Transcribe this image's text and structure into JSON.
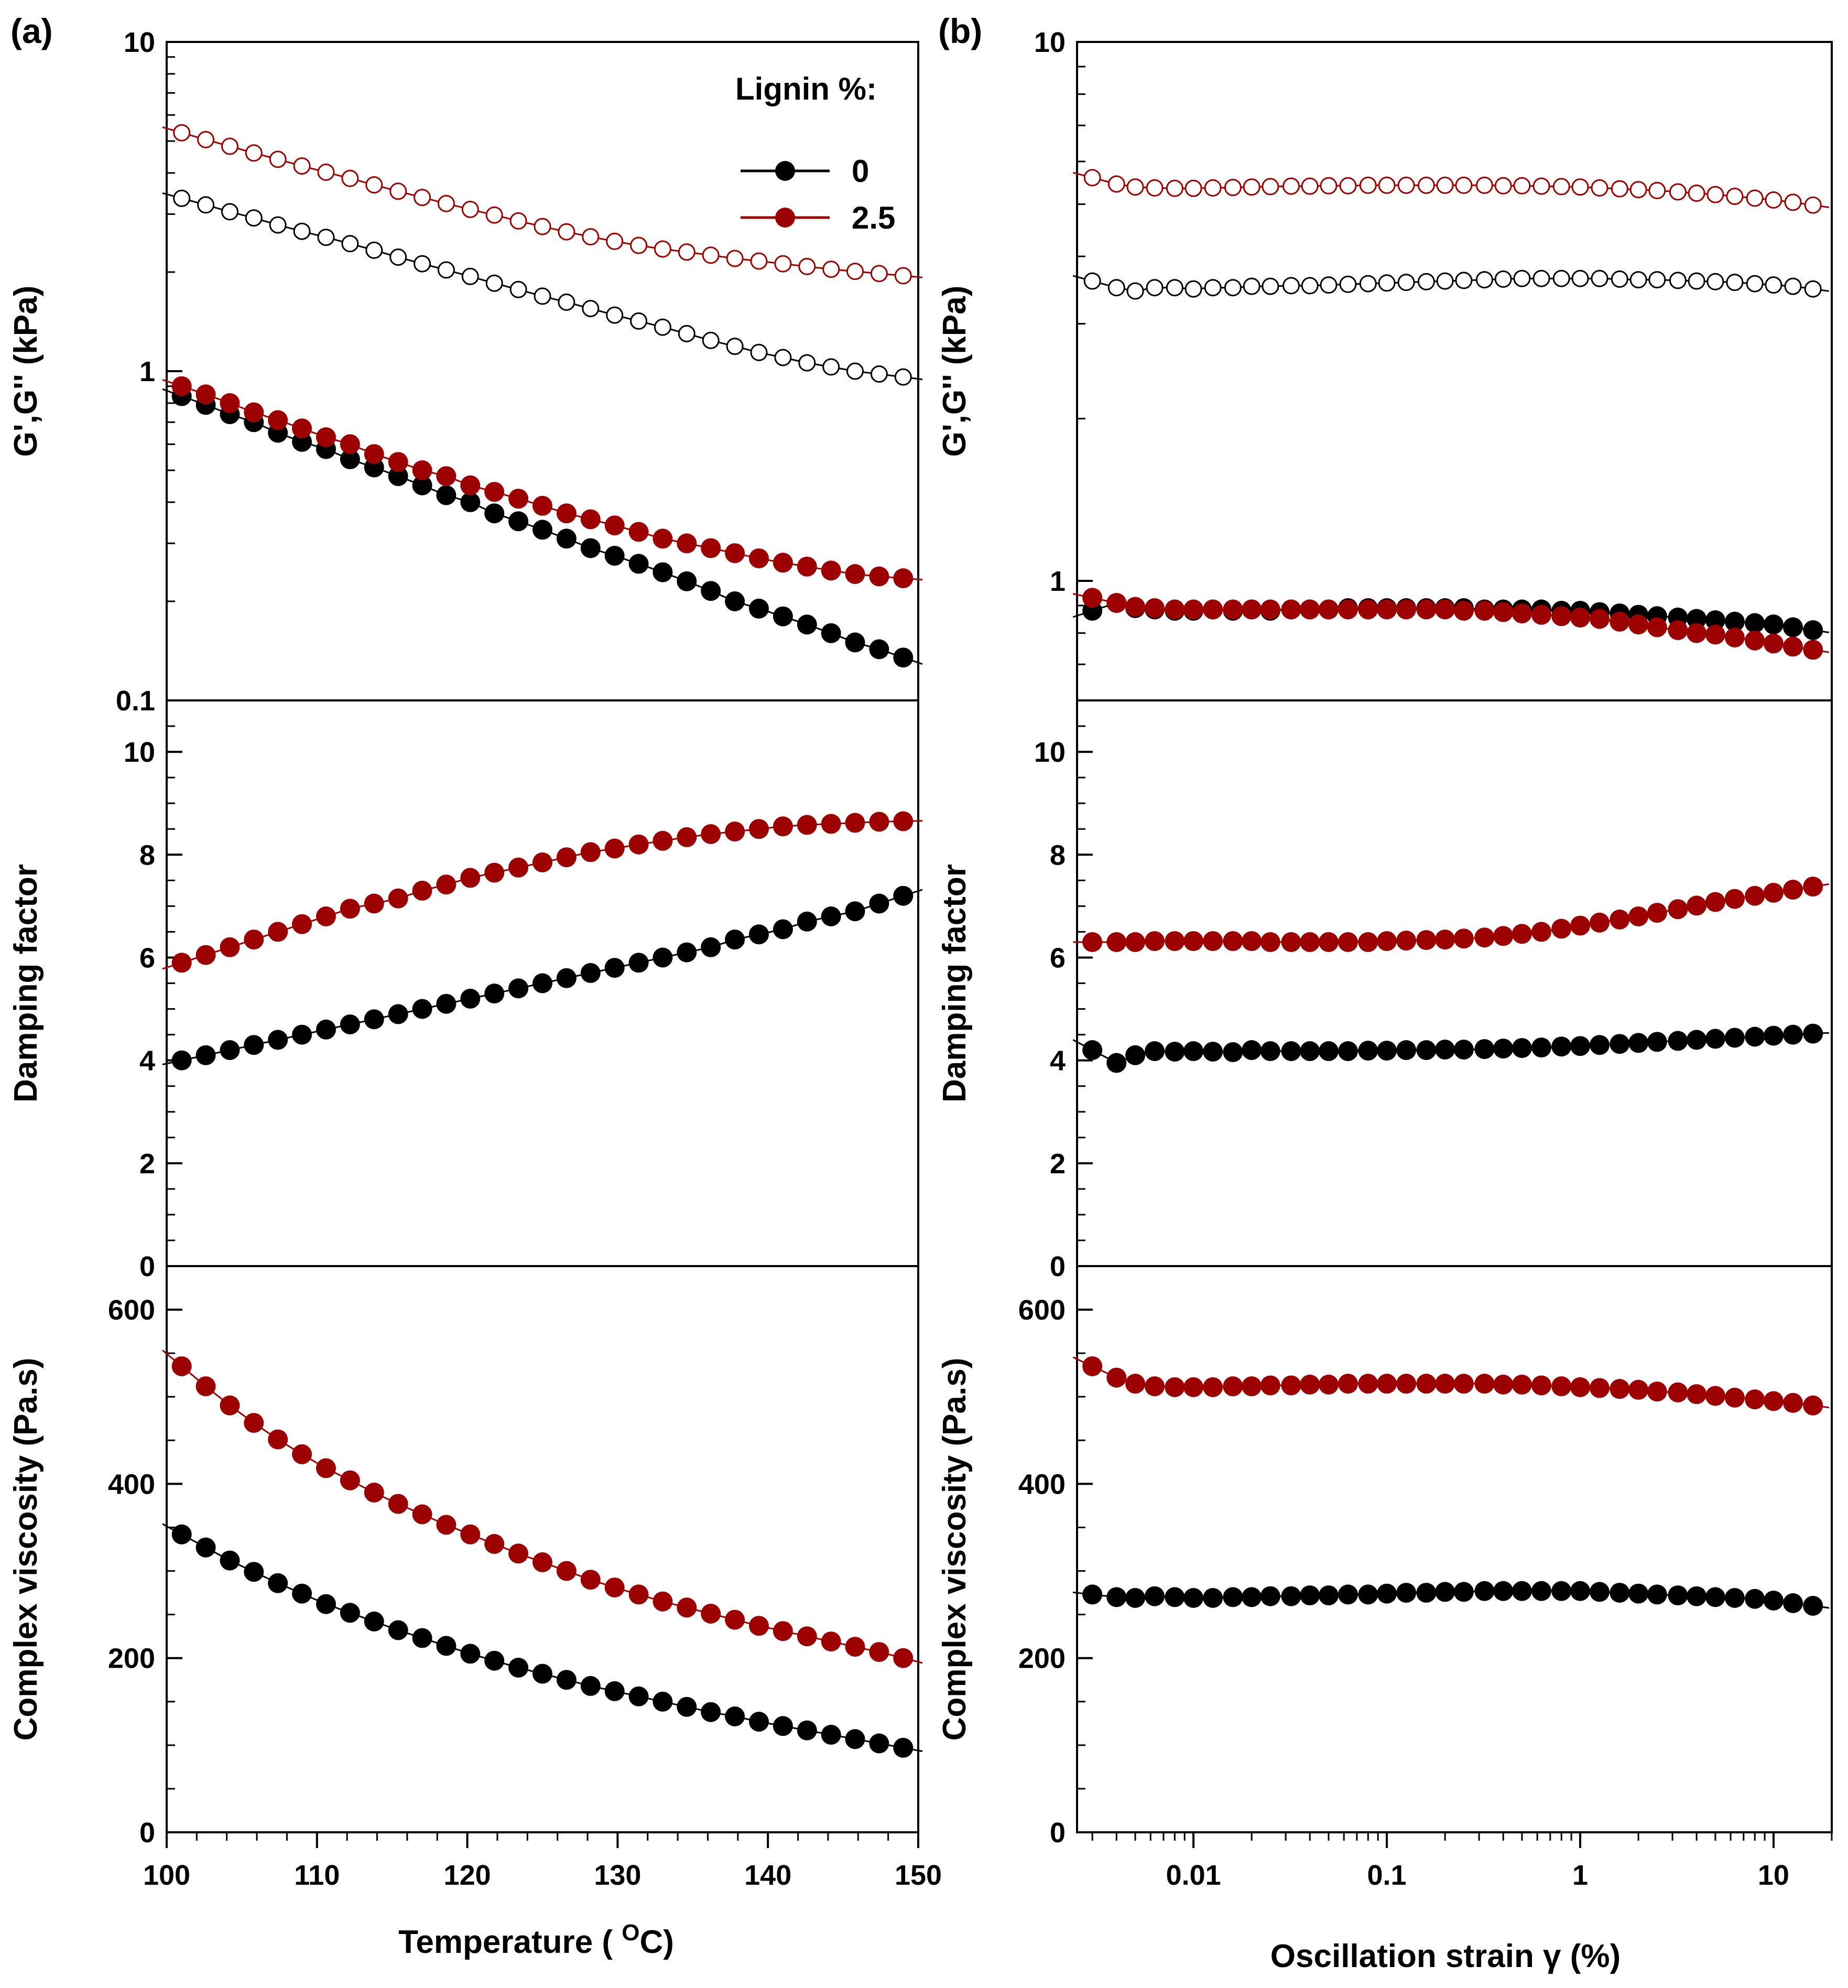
{
  "colors": {
    "lignin_0": "#000000",
    "lignin_2_5": "#9c0000",
    "axis": "#000000",
    "background": "#ffffff"
  },
  "legend": {
    "title": "Lignin %:",
    "placement": "top-right of panel (a) top plot",
    "entries": [
      {
        "label": "0",
        "color": "#000000"
      },
      {
        "label": "2.5",
        "color": "#9c0000"
      }
    ]
  },
  "panels": {
    "a": {
      "label": "(a)",
      "xlabel": "Temperature ( ",
      "xlabel_sup": "O",
      "xlabel_end": "C)"
    },
    "b": {
      "label": "(b)",
      "xlabel": "Oscillation strain γ (%)"
    }
  },
  "ylabels": {
    "modulus": "G',G'' (kPa)",
    "damping": "Damping factor",
    "viscosity": "Complex viscosity (Pa.s)"
  },
  "chart_data": [
    {
      "id": "a-top",
      "type": "scatter",
      "panel": "(a)",
      "x": [
        101,
        102.6,
        104.2,
        105.8,
        107.4,
        109,
        110.6,
        112.2,
        113.8,
        115.4,
        117,
        118.6,
        120.2,
        121.8,
        123.4,
        125,
        126.6,
        128.2,
        129.8,
        131.4,
        133,
        134.6,
        136.2,
        137.8,
        139.4,
        141,
        142.6,
        144.2,
        145.8,
        147.4,
        149
      ],
      "xlim": [
        100,
        150
      ],
      "xticks": [
        "100",
        "110",
        "120",
        "130",
        "140",
        "150"
      ],
      "yscale": "log",
      "ylim": [
        0.1,
        10
      ],
      "yticks": [
        "0.1",
        "1",
        "10"
      ],
      "ylabel": "G',G'' (kPa)",
      "series": [
        {
          "name": "0",
          "marker": "filled",
          "values": [
            0.84,
            0.79,
            0.74,
            0.7,
            0.65,
            0.61,
            0.58,
            0.54,
            0.51,
            0.48,
            0.45,
            0.42,
            0.4,
            0.37,
            0.35,
            0.33,
            0.31,
            0.29,
            0.275,
            0.26,
            0.245,
            0.23,
            0.215,
            0.2,
            0.19,
            0.18,
            0.17,
            0.16,
            0.15,
            0.143,
            0.135
          ]
        },
        {
          "name": "0",
          "marker": "open",
          "values": [
            3.35,
            3.2,
            3.05,
            2.92,
            2.78,
            2.66,
            2.55,
            2.44,
            2.33,
            2.22,
            2.12,
            2.03,
            1.94,
            1.85,
            1.77,
            1.69,
            1.62,
            1.55,
            1.48,
            1.42,
            1.36,
            1.3,
            1.24,
            1.19,
            1.14,
            1.1,
            1.06,
            1.03,
            1.0,
            0.98,
            0.96
          ]
        },
        {
          "name": "2.5",
          "marker": "filled",
          "values": [
            0.9,
            0.85,
            0.8,
            0.75,
            0.71,
            0.67,
            0.63,
            0.6,
            0.56,
            0.53,
            0.5,
            0.48,
            0.45,
            0.43,
            0.41,
            0.39,
            0.37,
            0.355,
            0.34,
            0.325,
            0.31,
            0.3,
            0.29,
            0.28,
            0.27,
            0.262,
            0.255,
            0.248,
            0.242,
            0.238,
            0.235
          ]
        },
        {
          "name": "2.5",
          "marker": "open",
          "values": [
            5.3,
            5.05,
            4.82,
            4.6,
            4.4,
            4.2,
            4.02,
            3.85,
            3.68,
            3.52,
            3.37,
            3.23,
            3.1,
            2.98,
            2.86,
            2.75,
            2.65,
            2.56,
            2.48,
            2.41,
            2.35,
            2.3,
            2.25,
            2.2,
            2.16,
            2.12,
            2.08,
            2.04,
            2.01,
            1.98,
            1.95
          ]
        }
      ]
    },
    {
      "id": "a-mid",
      "type": "scatter",
      "panel": "(a)",
      "x": [
        101,
        102.6,
        104.2,
        105.8,
        107.4,
        109,
        110.6,
        112.2,
        113.8,
        115.4,
        117,
        118.6,
        120.2,
        121.8,
        123.4,
        125,
        126.6,
        128.2,
        129.8,
        131.4,
        133,
        134.6,
        136.2,
        137.8,
        139.4,
        141,
        142.6,
        144.2,
        145.8,
        147.4,
        149
      ],
      "xlim": [
        100,
        150
      ],
      "ylim": [
        0,
        11
      ],
      "yticks": [
        "0",
        "2",
        "4",
        "6",
        "8",
        "10"
      ],
      "ylabel": "Damping factor",
      "series": [
        {
          "name": "0",
          "marker": "filled",
          "values": [
            4.0,
            4.1,
            4.2,
            4.3,
            4.4,
            4.5,
            4.6,
            4.7,
            4.8,
            4.9,
            5.0,
            5.1,
            5.2,
            5.3,
            5.4,
            5.5,
            5.6,
            5.7,
            5.8,
            5.9,
            6.0,
            6.1,
            6.2,
            6.35,
            6.45,
            6.55,
            6.7,
            6.8,
            6.9,
            7.05,
            7.2
          ]
        },
        {
          "name": "2.5",
          "marker": "filled",
          "values": [
            5.9,
            6.05,
            6.2,
            6.35,
            6.5,
            6.65,
            6.8,
            6.95,
            7.05,
            7.15,
            7.3,
            7.42,
            7.55,
            7.65,
            7.75,
            7.85,
            7.95,
            8.05,
            8.12,
            8.2,
            8.27,
            8.34,
            8.4,
            8.45,
            8.5,
            8.55,
            8.58,
            8.6,
            8.62,
            8.64,
            8.65
          ]
        }
      ]
    },
    {
      "id": "a-bot",
      "type": "scatter",
      "panel": "(a)",
      "x": [
        101,
        102.6,
        104.2,
        105.8,
        107.4,
        109,
        110.6,
        112.2,
        113.8,
        115.4,
        117,
        118.6,
        120.2,
        121.8,
        123.4,
        125,
        126.6,
        128.2,
        129.8,
        131.4,
        133,
        134.6,
        136.2,
        137.8,
        139.4,
        141,
        142.6,
        144.2,
        145.8,
        147.4,
        149
      ],
      "xlim": [
        100,
        150
      ],
      "ylim": [
        0,
        650
      ],
      "yticks": [
        "0",
        "200",
        "400",
        "600"
      ],
      "ylabel": "Complex viscosity (Pa.s)",
      "series": [
        {
          "name": "0",
          "marker": "filled",
          "values": [
            342,
            327,
            312,
            299,
            286,
            274,
            262,
            252,
            242,
            232,
            223,
            214,
            205,
            197,
            189,
            182,
            175,
            168,
            162,
            156,
            150,
            144,
            138,
            133,
            127,
            122,
            117,
            112,
            107,
            102,
            97
          ]
        },
        {
          "name": "2.5",
          "marker": "filled",
          "values": [
            535,
            512,
            490,
            470,
            451,
            434,
            418,
            404,
            390,
            377,
            365,
            353,
            342,
            331,
            320,
            310,
            300,
            290,
            281,
            273,
            265,
            258,
            251,
            244,
            237,
            231,
            225,
            219,
            213,
            207,
            200
          ]
        }
      ]
    },
    {
      "id": "b-top",
      "type": "scatter",
      "panel": "(b)",
      "x": [
        0.003,
        0.004,
        0.005,
        0.0063,
        0.008,
        0.01,
        0.0126,
        0.016,
        0.02,
        0.025,
        0.032,
        0.04,
        0.05,
        0.063,
        0.08,
        0.1,
        0.126,
        0.16,
        0.2,
        0.25,
        0.32,
        0.4,
        0.5,
        0.63,
        0.8,
        1.0,
        1.26,
        1.6,
        2.0,
        2.5,
        3.2,
        4.0,
        5.0,
        6.3,
        8.0,
        10,
        12.6,
        16
      ],
      "xscale": "log",
      "xlim": [
        0.0025,
        20
      ],
      "xticks": [
        "0.01",
        "0.1",
        "1",
        "10"
      ],
      "yscale": "log",
      "ylim": [
        0.6,
        10
      ],
      "yticks": [
        "1",
        "10"
      ],
      "ylabel": "G',G'' (kPa)",
      "series": [
        {
          "name": "0",
          "marker": "filled",
          "values": [
            0.88,
            0.91,
            0.89,
            0.885,
            0.88,
            0.88,
            0.885,
            0.88,
            0.885,
            0.88,
            0.885,
            0.885,
            0.885,
            0.89,
            0.89,
            0.89,
            0.89,
            0.89,
            0.89,
            0.89,
            0.885,
            0.885,
            0.885,
            0.885,
            0.88,
            0.88,
            0.875,
            0.87,
            0.865,
            0.86,
            0.855,
            0.85,
            0.845,
            0.84,
            0.835,
            0.83,
            0.82,
            0.81
          ]
        },
        {
          "name": "0",
          "marker": "open",
          "values": [
            3.6,
            3.5,
            3.45,
            3.5,
            3.5,
            3.48,
            3.5,
            3.5,
            3.52,
            3.52,
            3.53,
            3.53,
            3.54,
            3.55,
            3.56,
            3.57,
            3.58,
            3.59,
            3.6,
            3.61,
            3.62,
            3.63,
            3.64,
            3.64,
            3.64,
            3.64,
            3.64,
            3.63,
            3.62,
            3.62,
            3.61,
            3.6,
            3.59,
            3.58,
            3.56,
            3.54,
            3.52,
            3.48
          ]
        },
        {
          "name": "2.5",
          "marker": "filled",
          "values": [
            0.93,
            0.91,
            0.895,
            0.89,
            0.885,
            0.885,
            0.885,
            0.885,
            0.885,
            0.885,
            0.885,
            0.885,
            0.885,
            0.885,
            0.885,
            0.885,
            0.885,
            0.885,
            0.885,
            0.88,
            0.88,
            0.875,
            0.87,
            0.865,
            0.86,
            0.855,
            0.85,
            0.84,
            0.83,
            0.82,
            0.81,
            0.8,
            0.795,
            0.785,
            0.775,
            0.765,
            0.755,
            0.745
          ]
        },
        {
          "name": "2.5",
          "marker": "open",
          "values": [
            5.6,
            5.45,
            5.38,
            5.36,
            5.35,
            5.35,
            5.36,
            5.37,
            5.38,
            5.39,
            5.4,
            5.4,
            5.41,
            5.41,
            5.42,
            5.42,
            5.42,
            5.42,
            5.42,
            5.42,
            5.42,
            5.41,
            5.41,
            5.4,
            5.39,
            5.38,
            5.36,
            5.34,
            5.32,
            5.3,
            5.27,
            5.24,
            5.21,
            5.17,
            5.13,
            5.09,
            5.04,
            4.98
          ]
        }
      ]
    },
    {
      "id": "b-mid",
      "type": "scatter",
      "panel": "(b)",
      "x": [
        0.003,
        0.004,
        0.005,
        0.0063,
        0.008,
        0.01,
        0.0126,
        0.016,
        0.02,
        0.025,
        0.032,
        0.04,
        0.05,
        0.063,
        0.08,
        0.1,
        0.126,
        0.16,
        0.2,
        0.25,
        0.32,
        0.4,
        0.5,
        0.63,
        0.8,
        1.0,
        1.26,
        1.6,
        2.0,
        2.5,
        3.2,
        4.0,
        5.0,
        6.3,
        8.0,
        10,
        12.6,
        16
      ],
      "xscale": "log",
      "xlim": [
        0.0025,
        20
      ],
      "ylim": [
        0,
        11
      ],
      "yticks": [
        "0",
        "2",
        "4",
        "6",
        "8",
        "10"
      ],
      "ylabel": "Damping factor",
      "series": [
        {
          "name": "0",
          "marker": "filled",
          "values": [
            4.2,
            3.95,
            4.1,
            4.18,
            4.17,
            4.18,
            4.17,
            4.16,
            4.2,
            4.18,
            4.18,
            4.18,
            4.18,
            4.18,
            4.19,
            4.19,
            4.2,
            4.2,
            4.21,
            4.21,
            4.22,
            4.23,
            4.24,
            4.25,
            4.27,
            4.28,
            4.3,
            4.32,
            4.34,
            4.36,
            4.38,
            4.4,
            4.42,
            4.44,
            4.46,
            4.48,
            4.5,
            4.52
          ]
        },
        {
          "name": "2.5",
          "marker": "filled",
          "values": [
            6.3,
            6.3,
            6.3,
            6.32,
            6.32,
            6.32,
            6.32,
            6.32,
            6.32,
            6.3,
            6.3,
            6.3,
            6.3,
            6.3,
            6.3,
            6.32,
            6.33,
            6.34,
            6.35,
            6.37,
            6.39,
            6.42,
            6.46,
            6.5,
            6.56,
            6.62,
            6.68,
            6.74,
            6.8,
            6.87,
            6.94,
            7.01,
            7.08,
            7.14,
            7.2,
            7.26,
            7.32,
            7.38
          ]
        }
      ]
    },
    {
      "id": "b-bot",
      "type": "scatter",
      "panel": "(b)",
      "x": [
        0.003,
        0.004,
        0.005,
        0.0063,
        0.008,
        0.01,
        0.0126,
        0.016,
        0.02,
        0.025,
        0.032,
        0.04,
        0.05,
        0.063,
        0.08,
        0.1,
        0.126,
        0.16,
        0.2,
        0.25,
        0.32,
        0.4,
        0.5,
        0.63,
        0.8,
        1.0,
        1.26,
        1.6,
        2.0,
        2.5,
        3.2,
        4.0,
        5.0,
        6.3,
        8.0,
        10,
        12.6,
        16
      ],
      "xscale": "log",
      "xlim": [
        0.0025,
        20
      ],
      "ylim": [
        0,
        650
      ],
      "yticks": [
        "0",
        "200",
        "400",
        "600"
      ],
      "ylabel": "Complex viscosity (Pa.s)",
      "series": [
        {
          "name": "0",
          "marker": "filled",
          "values": [
            273,
            270,
            269,
            271,
            270,
            269,
            269,
            270,
            270,
            271,
            271,
            272,
            272,
            273,
            273,
            274,
            275,
            275,
            276,
            276,
            277,
            277,
            277,
            277,
            277,
            277,
            276,
            275,
            274,
            273,
            272,
            271,
            270,
            269,
            268,
            266,
            263,
            260
          ]
        },
        {
          "name": "2.5",
          "marker": "filled",
          "values": [
            535,
            522,
            515,
            512,
            511,
            511,
            511,
            512,
            512,
            513,
            513,
            514,
            514,
            515,
            515,
            515,
            515,
            515,
            515,
            515,
            515,
            514,
            514,
            513,
            512,
            511,
            510,
            509,
            508,
            506,
            505,
            503,
            501,
            499,
            497,
            495,
            493,
            490
          ]
        }
      ]
    }
  ]
}
